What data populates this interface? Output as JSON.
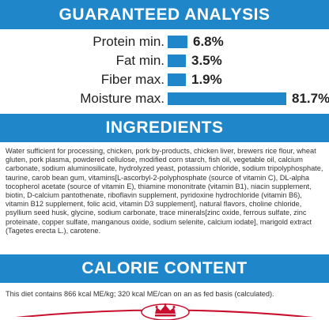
{
  "guaranteed_analysis": {
    "title": "GUARANTEED ANALYSIS",
    "rows": [
      {
        "label": "Protein min.",
        "value": "6.8%",
        "percent": 6.8
      },
      {
        "label": "Fat min.",
        "value": "3.5%",
        "percent": 3.5
      },
      {
        "label": "Fiber max.",
        "value": "1.9%",
        "percent": 1.9
      },
      {
        "label": "Moisture max.",
        "value": "81.7%",
        "percent": 81.7
      }
    ]
  },
  "ingredients": {
    "title": "INGREDIENTS",
    "text": "Water sufficient for processing, chicken, pork by-products, chicken liver, brewers rice flour, wheat gluten, pork plasma, powdered cellulose, modified corn starch, fish oil, vegetable oil, calcium carbonate, sodium aluminosilicate, hydrolyzed yeast, potassium chloride, sodium tripolyphosphate, taurine, carob bean gum, vitamins[L-ascorbyl-2-polyphosphate (source of vitamin C), DL-alpha tocopherol acetate (source of vitamin E), thiamine mononitrate (vitamin B1), niacin supplement, biotin, D-calcium pantothenate, riboflavin supplement, pyridoxine hydrochloride (vitamin B6), vitamin B12 supplement, folic acid, vitamin D3 supplement], natural flavors, choline chloride, psyllium seed husk, glycine, sodium carbonate, trace minerals[zinc oxide, ferrous sulfate, zinc proteinate, copper sulfate, manganous oxide, sodium selenite, calcium iodate], marigold extract (Tagetes erecta L.), carotene."
  },
  "calorie_content": {
    "title": "CALORIE CONTENT",
    "text": "This diet contains 866 kcal ME/kg; 320 kcal ME/can on an as fed basis (calculated)."
  },
  "colors": {
    "accent_blue": "#1f87c9",
    "brand_red": "#c8102e"
  },
  "logo": {
    "icon": "royal-canin-crown-logo-icon"
  }
}
